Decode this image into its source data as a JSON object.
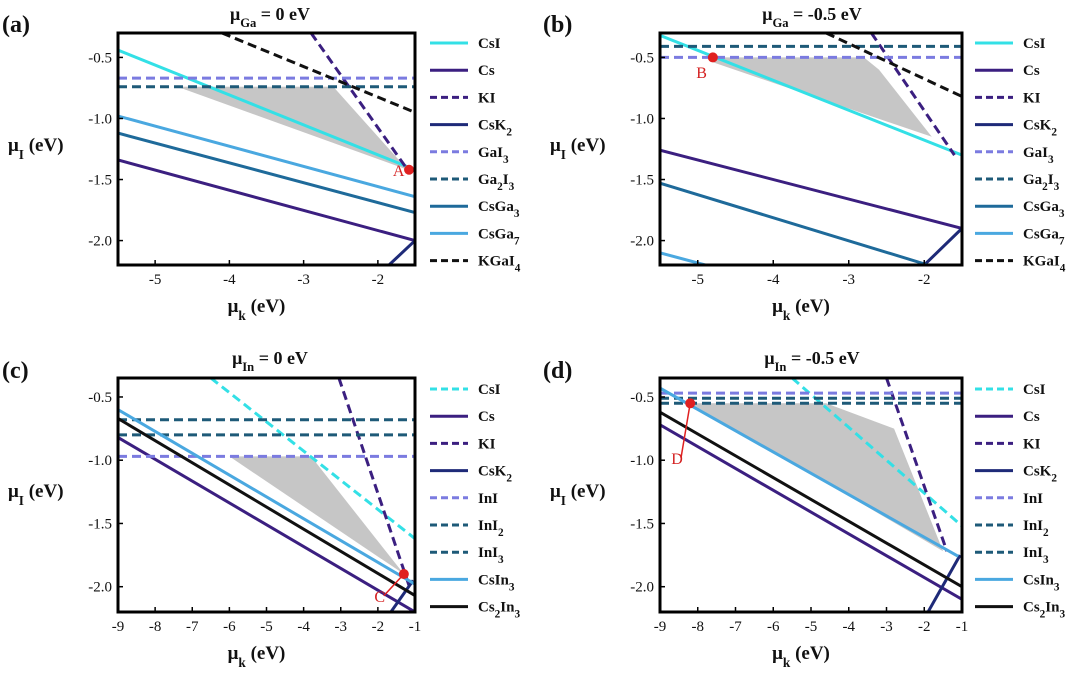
{
  "colors": {
    "CsI": "#33e0e6",
    "Cs": "#3b1f80",
    "KI": "#3b1f80",
    "CsK2": "#1e2a78",
    "M_I": "#7b7be0",
    "M2I3": "#1e5a78",
    "CsM3": "#1e6a9a",
    "CsM7": "#4aa8e0",
    "KGaI4": "#111111",
    "CsIn3": "#4aa8e0",
    "Cs2In3": "#111111",
    "shade": "#c6c6c6",
    "marker": "#e02020"
  },
  "chart_data": [
    {
      "id": "a",
      "type": "line",
      "panel_label": "(a)",
      "title": {
        "sym": "μ",
        "sub": "Ga",
        "rest": " = 0 eV"
      },
      "xlabel": {
        "sym": "μ",
        "sub": "k",
        "rest": " (eV)"
      },
      "ylabel": {
        "sym": "μ",
        "sub": "I",
        "rest": " (eV)"
      },
      "xlim": [
        -5.5,
        -1.5
      ],
      "ylim": [
        -2.2,
        -0.3
      ],
      "xticks": [
        -5,
        -4,
        -3,
        -2
      ],
      "yticks": [
        -0.5,
        -1.0,
        -1.5,
        -2.0
      ],
      "xtick_labels": [
        "-5",
        "-4",
        "-3",
        "-2"
      ],
      "ytick_labels": [
        "-0.5",
        "-1.0",
        "-1.5",
        "-2.0"
      ],
      "shade": [
        [
          -4.7,
          -0.74
        ],
        [
          -2.6,
          -0.74
        ],
        [
          -1.6,
          -1.42
        ]
      ],
      "series": [
        {
          "name": "CsI",
          "label": "CsI",
          "style": "solid",
          "color": "CsI",
          "x": [
            -5.5,
            -1.5
          ],
          "y": [
            -0.44,
            -1.42
          ]
        },
        {
          "name": "Cs",
          "label": "Cs",
          "style": "solid",
          "color": "Cs",
          "x": [
            -5.5,
            -1.5
          ],
          "y": [
            -1.34,
            -2.0
          ]
        },
        {
          "name": "KI",
          "label": "KI",
          "style": "dashed",
          "color": "KI",
          "x": [
            -2.9,
            -1.6
          ],
          "y": [
            -0.3,
            -1.42
          ]
        },
        {
          "name": "CsK2",
          "label": "CsK",
          "label_sub": "2",
          "style": "solid",
          "color": "CsK2",
          "x": [
            -1.85,
            -1.5
          ],
          "y": [
            -2.2,
            -2.0
          ]
        },
        {
          "name": "GaI3",
          "label": "GaI",
          "label_sub": "3",
          "style": "dashed",
          "color": "M_I",
          "x": [
            -5.5,
            -1.5
          ],
          "y": [
            -0.67,
            -0.67
          ]
        },
        {
          "name": "Ga2I3",
          "label": "Ga",
          "label_sub": "2",
          "label_post": "I",
          "label_sub2": "3",
          "style": "dashed",
          "color": "M2I3",
          "x": [
            -5.5,
            -1.5
          ],
          "y": [
            -0.74,
            -0.74
          ]
        },
        {
          "name": "CsGa3",
          "label": "CsGa",
          "label_sub": "3",
          "style": "solid",
          "color": "CsM3",
          "x": [
            -5.5,
            -1.5
          ],
          "y": [
            -1.12,
            -1.77
          ]
        },
        {
          "name": "CsGa7",
          "label": "CsGa",
          "label_sub": "7",
          "style": "solid",
          "color": "CsM7",
          "x": [
            -5.5,
            -1.5
          ],
          "y": [
            -0.98,
            -1.64
          ]
        },
        {
          "name": "KGaI4",
          "label": "KGaI",
          "label_sub": "4",
          "style": "dashed",
          "color": "KGaI4",
          "x": [
            -4.1,
            -1.5
          ],
          "y": [
            -0.3,
            -0.95
          ]
        }
      ],
      "points": [
        {
          "label": "A",
          "x": -1.58,
          "y": -1.42,
          "label_x": -1.72,
          "label_y": -1.47,
          "leader": false
        }
      ]
    },
    {
      "id": "b",
      "type": "line",
      "panel_label": "(b)",
      "title": {
        "sym": "μ",
        "sub": "Ga",
        "rest": " = -0.5 eV"
      },
      "xlabel": {
        "sym": "μ",
        "sub": "k",
        "rest": " (eV)"
      },
      "ylabel": {
        "sym": "μ",
        "sub": "I",
        "rest": " (eV)"
      },
      "xlim": [
        -5.5,
        -1.5
      ],
      "ylim": [
        -2.2,
        -0.3
      ],
      "xticks": [
        -5,
        -4,
        -3,
        -2
      ],
      "yticks": [
        -0.5,
        -1.0,
        -1.5,
        -2.0
      ],
      "xtick_labels": [
        "-5",
        "-4",
        "-3",
        "-2"
      ],
      "ytick_labels": [
        "-0.5",
        "-1.0",
        "-1.5",
        "-2.0"
      ],
      "shade": [
        [
          -4.8,
          -0.5
        ],
        [
          -2.8,
          -0.5
        ],
        [
          -2.6,
          -0.6
        ],
        [
          -1.9,
          -1.15
        ],
        [
          -4.8,
          -0.54
        ]
      ],
      "series": [
        {
          "name": "CsI",
          "label": "CsI",
          "style": "solid",
          "color": "CsI",
          "x": [
            -5.5,
            -1.5
          ],
          "y": [
            -0.32,
            -1.3
          ]
        },
        {
          "name": "Cs",
          "label": "Cs",
          "style": "solid",
          "color": "Cs",
          "x": [
            -5.5,
            -1.5
          ],
          "y": [
            -1.26,
            -1.9
          ]
        },
        {
          "name": "KI",
          "label": "KI",
          "style": "dashed",
          "color": "KI",
          "x": [
            -2.7,
            -1.6
          ],
          "y": [
            -0.3,
            -1.3
          ]
        },
        {
          "name": "CsK2",
          "label": "CsK",
          "label_sub": "2",
          "style": "solid",
          "color": "CsK2",
          "x": [
            -2.0,
            -1.5
          ],
          "y": [
            -2.2,
            -1.9
          ]
        },
        {
          "name": "GaI3",
          "label": "GaI",
          "label_sub": "3",
          "style": "dashed",
          "color": "M_I",
          "x": [
            -5.5,
            -1.5
          ],
          "y": [
            -0.5,
            -0.5
          ]
        },
        {
          "name": "Ga2I3",
          "label": "Ga",
          "label_sub": "2",
          "label_post": "I",
          "label_sub2": "3",
          "style": "dashed",
          "color": "M2I3",
          "x": [
            -5.5,
            -1.5
          ],
          "y": [
            -0.41,
            -0.41
          ]
        },
        {
          "name": "CsGa3",
          "label": "CsGa",
          "label_sub": "3",
          "style": "solid",
          "color": "CsM3",
          "x": [
            -5.5,
            -1.95
          ],
          "y": [
            -1.53,
            -2.2
          ]
        },
        {
          "name": "CsGa7",
          "label": "CsGa",
          "label_sub": "7",
          "style": "solid",
          "color": "CsM7",
          "x": [
            -5.5,
            -4.9
          ],
          "y": [
            -2.1,
            -2.2
          ]
        },
        {
          "name": "KGaI4",
          "label": "KGaI",
          "label_sub": "4",
          "style": "dashed",
          "color": "KGaI4",
          "x": [
            -3.3,
            -1.5
          ],
          "y": [
            -0.3,
            -0.82
          ]
        }
      ],
      "points": [
        {
          "label": "B",
          "x": -4.8,
          "y": -0.5,
          "label_x": -4.95,
          "label_y": -0.67,
          "leader": false
        }
      ]
    },
    {
      "id": "c",
      "type": "line",
      "panel_label": "(c)",
      "title": {
        "sym": "μ",
        "sub": "In",
        "rest": " = 0 eV"
      },
      "xlabel": {
        "sym": "μ",
        "sub": "k",
        "rest": " (eV)"
      },
      "ylabel": {
        "sym": "μ",
        "sub": "I",
        "rest": " (eV)"
      },
      "xlim": [
        -9,
        -1
      ],
      "ylim": [
        -2.2,
        -0.35
      ],
      "xticks": [
        -9,
        -8,
        -7,
        -6,
        -5,
        -4,
        -3,
        -2,
        -1
      ],
      "yticks": [
        -0.5,
        -1.0,
        -1.5,
        -2.0
      ],
      "xtick_labels": [
        "-9",
        "-8",
        "-7",
        "-6",
        "-5",
        "-4",
        "-3",
        "-2",
        "-1"
      ],
      "ytick_labels": [
        "-0.5",
        "-1.0",
        "-1.5",
        "-2.0"
      ],
      "shade": [
        [
          -6.0,
          -0.97
        ],
        [
          -3.8,
          -0.97
        ],
        [
          -1.3,
          -1.9
        ]
      ],
      "series": [
        {
          "name": "CsI",
          "label": "CsI",
          "style": "dashed",
          "color": "CsI",
          "x": [
            -6.5,
            -1.0
          ],
          "y": [
            -0.35,
            -1.62
          ]
        },
        {
          "name": "Cs",
          "label": "Cs",
          "style": "solid",
          "color": "Cs",
          "x": [
            -9.0,
            -1.0
          ],
          "y": [
            -0.82,
            -2.2
          ]
        },
        {
          "name": "KI",
          "label": "KI",
          "style": "dashed",
          "color": "KI",
          "x": [
            -3.05,
            -1.15
          ],
          "y": [
            -0.35,
            -2.0
          ]
        },
        {
          "name": "CsK2",
          "label": "CsK",
          "label_sub": "2",
          "style": "solid",
          "color": "CsK2",
          "x": [
            -1.65,
            -1.05
          ],
          "y": [
            -2.2,
            -1.95
          ]
        },
        {
          "name": "InI",
          "label": "InI",
          "style": "dashed",
          "color": "M_I",
          "x": [
            -9.0,
            -1.0
          ],
          "y": [
            -0.97,
            -0.97
          ]
        },
        {
          "name": "InI2",
          "label": "InI",
          "label_sub": "2",
          "style": "dashed",
          "color": "M2I3",
          "x": [
            -9.0,
            -1.0
          ],
          "y": [
            -0.68,
            -0.68
          ]
        },
        {
          "name": "InI3",
          "label": "InI",
          "label_sub": "3",
          "style": "dashed",
          "color": "M2I3",
          "x": [
            -9.0,
            -1.0
          ],
          "y": [
            -0.8,
            -0.8
          ]
        },
        {
          "name": "CsIn3",
          "label": "CsIn",
          "label_sub": "3",
          "style": "solid",
          "color": "CsIn3",
          "x": [
            -9.0,
            -1.0
          ],
          "y": [
            -0.6,
            -1.98
          ]
        },
        {
          "name": "Cs2In3",
          "label": "Cs",
          "label_sub": "2",
          "label_post": "In",
          "label_sub2": "3",
          "style": "solid",
          "color": "Cs2In3",
          "x": [
            -9.0,
            -1.0
          ],
          "y": [
            -0.67,
            -2.07
          ]
        }
      ],
      "points": [
        {
          "label": "C",
          "x": -1.3,
          "y": -1.9,
          "label_x": -1.95,
          "label_y": -2.12,
          "leader": true
        }
      ]
    },
    {
      "id": "d",
      "type": "line",
      "panel_label": "(d)",
      "title": {
        "sym": "μ",
        "sub": "In",
        "rest": " = -0.5 eV"
      },
      "xlabel": {
        "sym": "μ",
        "sub": "k",
        "rest": " (eV)"
      },
      "ylabel": {
        "sym": "μ",
        "sub": "I",
        "rest": " (eV)"
      },
      "xlim": [
        -9,
        -1
      ],
      "ylim": [
        -2.2,
        -0.35
      ],
      "xticks": [
        -9,
        -8,
        -7,
        -6,
        -5,
        -4,
        -3,
        -2,
        -1
      ],
      "yticks": [
        -0.5,
        -1.0,
        -1.5,
        -2.0
      ],
      "xtick_labels": [
        "-9",
        "-8",
        "-7",
        "-6",
        "-5",
        "-4",
        "-3",
        "-2",
        "-1"
      ],
      "ytick_labels": [
        "-0.5",
        "-1.0",
        "-1.5",
        "-2.0"
      ],
      "shade": [
        [
          -8.2,
          -0.55
        ],
        [
          -4.6,
          -0.55
        ],
        [
          -2.8,
          -0.75
        ],
        [
          -1.5,
          -1.72
        ]
      ],
      "series": [
        {
          "name": "CsI",
          "label": "CsI",
          "style": "dashed",
          "color": "CsI",
          "x": [
            -5.5,
            -1.0
          ],
          "y": [
            -0.35,
            -1.52
          ]
        },
        {
          "name": "Cs",
          "label": "Cs",
          "style": "solid",
          "color": "Cs",
          "x": [
            -9.0,
            -1.0
          ],
          "y": [
            -0.72,
            -2.1
          ]
        },
        {
          "name": "KI",
          "label": "KI",
          "style": "dashed",
          "color": "KI",
          "x": [
            -3.0,
            -1.4
          ],
          "y": [
            -0.35,
            -1.72
          ]
        },
        {
          "name": "CsK2",
          "label": "CsK",
          "label_sub": "2",
          "style": "solid",
          "color": "CsK2",
          "x": [
            -1.9,
            -1.05
          ],
          "y": [
            -2.2,
            -1.75
          ]
        },
        {
          "name": "InI",
          "label": "InI",
          "style": "dashed",
          "color": "M_I",
          "x": [
            -9.0,
            -1.0
          ],
          "y": [
            -0.47,
            -0.47
          ]
        },
        {
          "name": "InI2",
          "label": "InI",
          "label_sub": "2",
          "style": "dashed",
          "color": "M2I3",
          "x": [
            -9.0,
            -1.0
          ],
          "y": [
            -0.51,
            -0.51
          ]
        },
        {
          "name": "InI3",
          "label": "InI",
          "label_sub": "3",
          "style": "dashed",
          "color": "M2I3",
          "x": [
            -9.0,
            -1.0
          ],
          "y": [
            -0.55,
            -0.55
          ]
        },
        {
          "name": "CsIn3",
          "label": "CsIn",
          "label_sub": "3",
          "style": "solid",
          "color": "CsIn3",
          "x": [
            -9.0,
            -1.1
          ],
          "y": [
            -0.43,
            -1.76
          ]
        },
        {
          "name": "Cs2In3",
          "label": "Cs",
          "label_sub": "2",
          "label_post": "In",
          "label_sub2": "3",
          "style": "solid",
          "color": "Cs2In3",
          "x": [
            -9.0,
            -1.0
          ],
          "y": [
            -0.62,
            -2.0
          ]
        }
      ],
      "points": [
        {
          "label": "D",
          "x": -8.2,
          "y": -0.55,
          "label_x": -8.55,
          "label_y": -1.03,
          "leader": true
        }
      ]
    }
  ]
}
